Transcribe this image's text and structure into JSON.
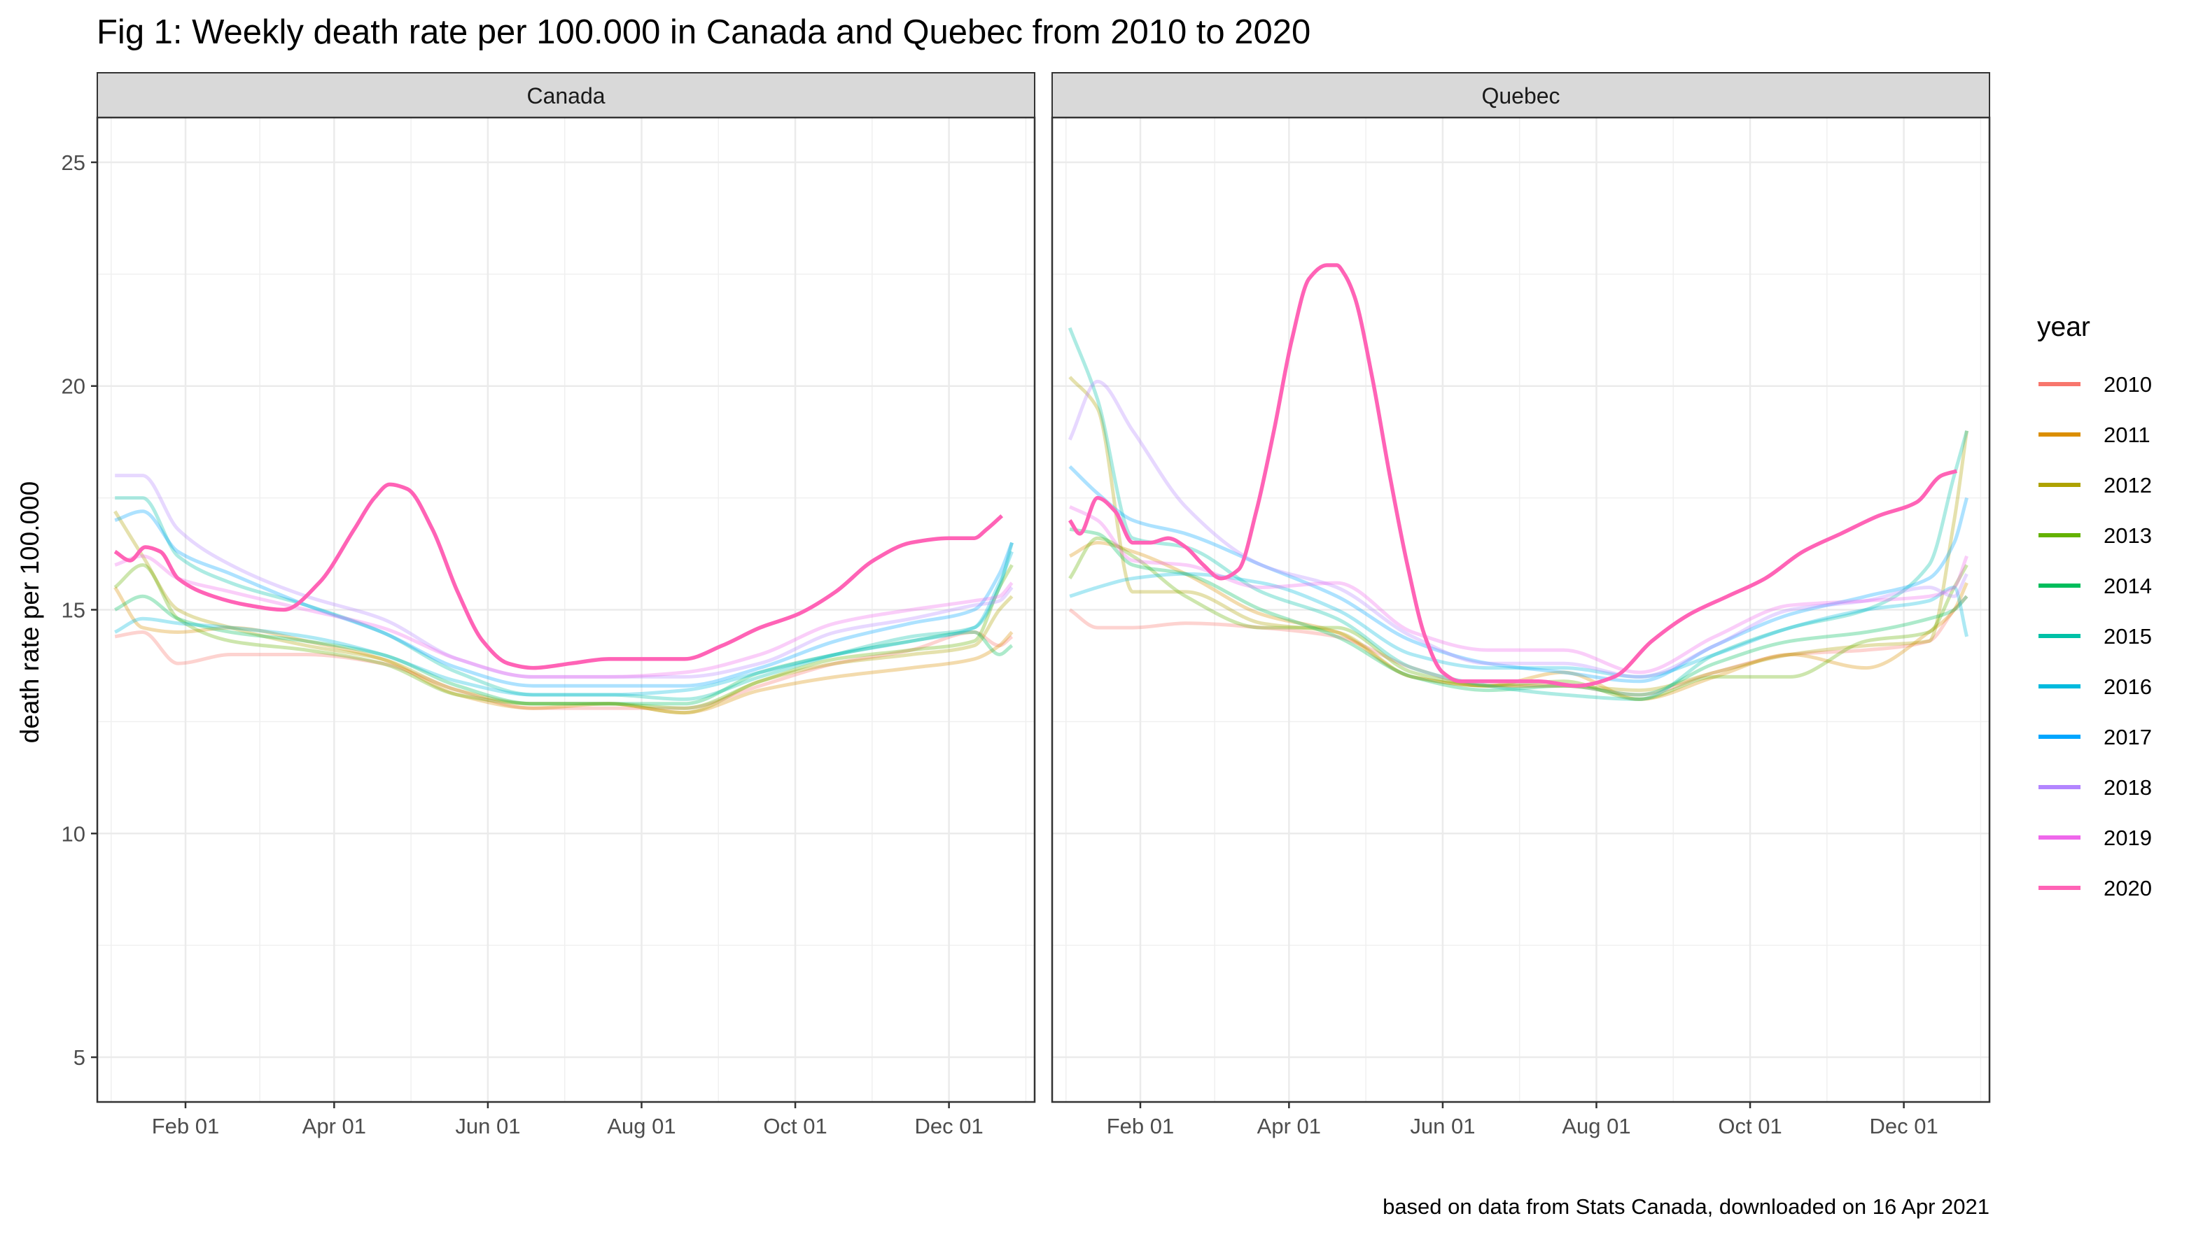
{
  "chart_data": {
    "type": "line",
    "title": "Fig 1: Weekly death rate per 100.000 in Canada and Quebec from 2010 to 2020",
    "ylabel": "death rate per 100.000",
    "xlabel": "",
    "caption": "based on data from Stats Canada, downloaded on 16 Apr 2021",
    "x_unit": "day of year (week midpoint, 1 = Jan 01)",
    "x_ticks": [
      {
        "label": "Feb 01",
        "day": 32
      },
      {
        "label": "Apr 01",
        "day": 91
      },
      {
        "label": "Jun 01",
        "day": 152
      },
      {
        "label": "Aug 01",
        "day": 213
      },
      {
        "label": "Oct 01",
        "day": 274
      },
      {
        "label": "Dec 01",
        "day": 335
      }
    ],
    "xlim": [
      -3,
      369
    ],
    "y_ticks": [
      5,
      10,
      15,
      20,
      25
    ],
    "ylim": [
      4,
      26
    ],
    "grid": true,
    "legend": {
      "title": "year",
      "position": "right"
    },
    "series_colors": {
      "2010": "#F8766D",
      "2011": "#DB8E00",
      "2012": "#AEA200",
      "2013": "#64B200",
      "2014": "#00BD5C",
      "2015": "#00C1A7",
      "2016": "#00BADE",
      "2017": "#00A6FF",
      "2018": "#B385FF",
      "2019": "#EF67EB",
      "2020": "#FF63B6"
    },
    "highlight_series": "2020",
    "panels": [
      {
        "name": "Canada",
        "series": [
          {
            "name": "2010",
            "x": [
              4,
              15,
              29,
              50,
              80,
              110,
              140,
              170,
              200,
              230,
              260,
              290,
              320,
              345,
              355,
              360
            ],
            "y": [
              14.4,
              14.5,
              13.8,
              14.0,
              14.0,
              13.8,
              13.2,
              12.8,
              12.8,
              12.8,
              13.3,
              13.8,
              14.1,
              14.5,
              14.2,
              14.4
            ]
          },
          {
            "name": "2011",
            "x": [
              4,
              15,
              29,
              50,
              80,
              110,
              140,
              170,
              200,
              230,
              260,
              290,
              320,
              345,
              355,
              360
            ],
            "y": [
              15.5,
              14.6,
              14.5,
              14.6,
              14.3,
              13.9,
              13.1,
              12.8,
              12.9,
              12.7,
              13.2,
              13.5,
              13.7,
              13.9,
              14.2,
              14.5
            ]
          },
          {
            "name": "2012",
            "x": [
              4,
              15,
              29,
              50,
              80,
              110,
              140,
              170,
              200,
              230,
              260,
              290,
              320,
              345,
              355,
              360
            ],
            "y": [
              17.2,
              16.2,
              15.0,
              14.6,
              14.2,
              13.9,
              13.2,
              12.9,
              12.9,
              12.7,
              13.4,
              13.8,
              14.0,
              14.2,
              15.0,
              15.3
            ]
          },
          {
            "name": "2013",
            "x": [
              4,
              15,
              29,
              50,
              80,
              110,
              140,
              170,
              200,
              230,
              260,
              290,
              320,
              345,
              355,
              360
            ],
            "y": [
              15.5,
              16.0,
              14.8,
              14.3,
              14.1,
              13.8,
              13.1,
              12.9,
              12.9,
              12.8,
              13.4,
              13.9,
              14.1,
              14.3,
              15.5,
              16.0
            ]
          },
          {
            "name": "2014",
            "x": [
              4,
              15,
              29,
              50,
              80,
              110,
              140,
              170,
              200,
              230,
              260,
              290,
              320,
              345,
              355,
              360
            ],
            "y": [
              15.0,
              15.3,
              14.8,
              14.5,
              14.3,
              14.0,
              13.3,
              12.9,
              12.9,
              12.9,
              13.6,
              14.0,
              14.3,
              14.5,
              14.0,
              14.2
            ]
          },
          {
            "name": "2015",
            "x": [
              4,
              15,
              29,
              50,
              80,
              110,
              140,
              170,
              200,
              230,
              260,
              290,
              320,
              345,
              355,
              360
            ],
            "y": [
              17.5,
              17.5,
              16.2,
              15.6,
              15.1,
              14.5,
              13.6,
              13.1,
              13.1,
              13.0,
              13.5,
              14.0,
              14.4,
              14.6,
              15.5,
              16.5
            ]
          },
          {
            "name": "2016",
            "x": [
              4,
              15,
              29,
              50,
              80,
              110,
              140,
              170,
              200,
              230,
              260,
              290,
              320,
              345,
              355,
              360
            ],
            "y": [
              14.5,
              14.8,
              14.7,
              14.6,
              14.4,
              14.0,
              13.4,
              13.1,
              13.1,
              13.2,
              13.6,
              14.0,
              14.3,
              14.6,
              15.6,
              16.3
            ]
          },
          {
            "name": "2017",
            "x": [
              4,
              15,
              29,
              50,
              80,
              110,
              140,
              170,
              200,
              230,
              260,
              290,
              320,
              345,
              355,
              360
            ],
            "y": [
              17.0,
              17.2,
              16.3,
              15.8,
              15.1,
              14.5,
              13.7,
              13.3,
              13.3,
              13.3,
              13.7,
              14.3,
              14.7,
              15.0,
              15.8,
              16.5
            ]
          },
          {
            "name": "2018",
            "x": [
              4,
              15,
              29,
              50,
              80,
              110,
              140,
              170,
              200,
              230,
              260,
              290,
              320,
              345,
              355,
              360
            ],
            "y": [
              18.0,
              18.0,
              16.8,
              16.0,
              15.3,
              14.8,
              13.9,
              13.5,
              13.5,
              13.5,
              13.8,
              14.5,
              14.8,
              15.1,
              15.2,
              15.5
            ]
          },
          {
            "name": "2019",
            "x": [
              4,
              15,
              29,
              50,
              80,
              110,
              140,
              170,
              200,
              230,
              260,
              290,
              320,
              345,
              355,
              360
            ],
            "y": [
              16.0,
              16.2,
              15.7,
              15.4,
              15.0,
              14.6,
              13.9,
              13.5,
              13.5,
              13.6,
              14.0,
              14.7,
              15.0,
              15.2,
              15.3,
              15.6
            ]
          },
          {
            "name": "2020",
            "x": [
              4,
              10,
              16,
              22,
              29,
              43,
              57,
              71,
              85,
              99,
              107,
              113,
              120,
              130,
              140,
              150,
              160,
              170,
              185,
              200,
              215,
              230,
              245,
              260,
              275,
              290,
              305,
              320,
              335,
              345,
              350,
              356
            ],
            "y": [
              16.3,
              16.1,
              16.4,
              16.3,
              15.7,
              15.3,
              15.1,
              15.0,
              15.6,
              16.8,
              17.5,
              17.8,
              17.7,
              16.8,
              15.4,
              14.3,
              13.8,
              13.7,
              13.8,
              13.9,
              13.9,
              13.9,
              14.2,
              14.6,
              14.9,
              15.4,
              16.1,
              16.5,
              16.6,
              16.6,
              16.8,
              17.1
            ]
          }
        ]
      },
      {
        "name": "Quebec",
        "series": [
          {
            "name": "2010",
            "x": [
              4,
              15,
              29,
              50,
              80,
              110,
              140,
              170,
              200,
              230,
              260,
              290,
              320,
              345,
              355,
              360
            ],
            "y": [
              15.0,
              14.6,
              14.6,
              14.7,
              14.6,
              14.4,
              13.7,
              13.3,
              13.3,
              13.1,
              13.6,
              14.0,
              14.1,
              14.3,
              15.0,
              15.3
            ]
          },
          {
            "name": "2011",
            "x": [
              4,
              15,
              29,
              50,
              80,
              110,
              140,
              170,
              200,
              230,
              260,
              290,
              320,
              345,
              355,
              360
            ],
            "y": [
              16.2,
              16.5,
              16.3,
              15.8,
              14.9,
              14.5,
              13.5,
              13.3,
              13.6,
              13.0,
              13.5,
              14.0,
              13.7,
              14.5,
              15.0,
              15.6
            ]
          },
          {
            "name": "2012",
            "x": [
              4,
              15,
              29,
              50,
              80,
              110,
              140,
              170,
              200,
              230,
              260,
              290,
              320,
              345,
              355,
              360
            ],
            "y": [
              20.2,
              19.5,
              15.4,
              15.4,
              14.7,
              14.5,
              13.5,
              13.3,
              13.3,
              13.2,
              13.6,
              14.0,
              14.2,
              14.3,
              17.0,
              19.0
            ]
          },
          {
            "name": "2013",
            "x": [
              4,
              15,
              29,
              50,
              80,
              110,
              140,
              170,
              200,
              230,
              260,
              290,
              320,
              345,
              355,
              360
            ],
            "y": [
              15.7,
              16.6,
              16.2,
              15.3,
              14.6,
              14.6,
              13.6,
              13.3,
              13.4,
              13.0,
              13.5,
              13.5,
              14.3,
              14.5,
              15.5,
              16.0
            ]
          },
          {
            "name": "2014",
            "x": [
              4,
              15,
              29,
              50,
              80,
              110,
              140,
              170,
              200,
              230,
              260,
              290,
              320,
              345,
              355,
              360
            ],
            "y": [
              16.8,
              16.7,
              16.0,
              15.8,
              15.0,
              14.4,
              13.5,
              13.2,
              13.3,
              13.1,
              13.8,
              14.3,
              14.5,
              14.8,
              15.0,
              15.3
            ]
          },
          {
            "name": "2015",
            "x": [
              4,
              15,
              29,
              50,
              80,
              110,
              140,
              170,
              200,
              230,
              260,
              290,
              320,
              345,
              355,
              360
            ],
            "y": [
              21.3,
              19.7,
              16.6,
              16.4,
              15.4,
              14.8,
              13.7,
              13.3,
              13.1,
              13.0,
              14.0,
              14.6,
              15.0,
              16.0,
              18.0,
              19.0
            ]
          },
          {
            "name": "2016",
            "x": [
              4,
              15,
              29,
              50,
              80,
              110,
              140,
              170,
              200,
              230,
              260,
              290,
              320,
              345,
              355,
              360
            ],
            "y": [
              15.3,
              15.5,
              15.7,
              15.8,
              15.6,
              15.0,
              14.0,
              13.7,
              13.7,
              13.5,
              14.0,
              14.6,
              15.0,
              15.2,
              15.5,
              14.4
            ]
          },
          {
            "name": "2017",
            "x": [
              4,
              15,
              29,
              50,
              80,
              110,
              140,
              170,
              200,
              230,
              260,
              290,
              320,
              345,
              355,
              360
            ],
            "y": [
              18.2,
              17.6,
              17.0,
              16.7,
              16.0,
              15.3,
              14.3,
              13.8,
              13.6,
              13.4,
              14.2,
              14.9,
              15.3,
              15.7,
              16.5,
              17.5
            ]
          },
          {
            "name": "2018",
            "x": [
              4,
              15,
              29,
              50,
              80,
              110,
              140,
              170,
              200,
              230,
              260,
              290,
              320,
              345,
              355,
              360
            ],
            "y": [
              18.8,
              20.1,
              19.0,
              17.3,
              16.0,
              15.5,
              14.4,
              13.8,
              13.8,
              13.5,
              14.2,
              15.0,
              15.2,
              15.5,
              15.3,
              15.8
            ]
          },
          {
            "name": "2019",
            "x": [
              4,
              15,
              29,
              50,
              80,
              110,
              140,
              170,
              200,
              230,
              260,
              290,
              320,
              345,
              355,
              360
            ],
            "y": [
              17.3,
              17.0,
              16.1,
              16.0,
              15.5,
              15.6,
              14.5,
              14.1,
              14.1,
              13.6,
              14.4,
              15.1,
              15.2,
              15.3,
              15.5,
              16.2
            ]
          },
          {
            "name": "2020",
            "x": [
              4,
              8,
              15,
              22,
              29,
              36,
              43,
              50,
              57,
              64,
              71,
              78,
              85,
              92,
              99,
              106,
              110,
              113,
              117,
              124,
              131,
              138,
              145,
              152,
              159,
              166,
              175,
              190,
              205,
              220,
              235,
              250,
              265,
              280,
              295,
              310,
              325,
              340,
              350,
              356
            ],
            "y": [
              17.0,
              16.7,
              17.5,
              17.2,
              16.5,
              16.5,
              16.6,
              16.4,
              16.0,
              15.7,
              15.9,
              17.2,
              19.0,
              21.0,
              22.4,
              22.7,
              22.7,
              22.5,
              22.0,
              20.2,
              18.0,
              16.0,
              14.4,
              13.6,
              13.4,
              13.4,
              13.4,
              13.4,
              13.3,
              13.5,
              14.3,
              14.9,
              15.3,
              15.7,
              16.3,
              16.7,
              17.1,
              17.4,
              18.0,
              18.1
            ]
          }
        ]
      }
    ]
  }
}
